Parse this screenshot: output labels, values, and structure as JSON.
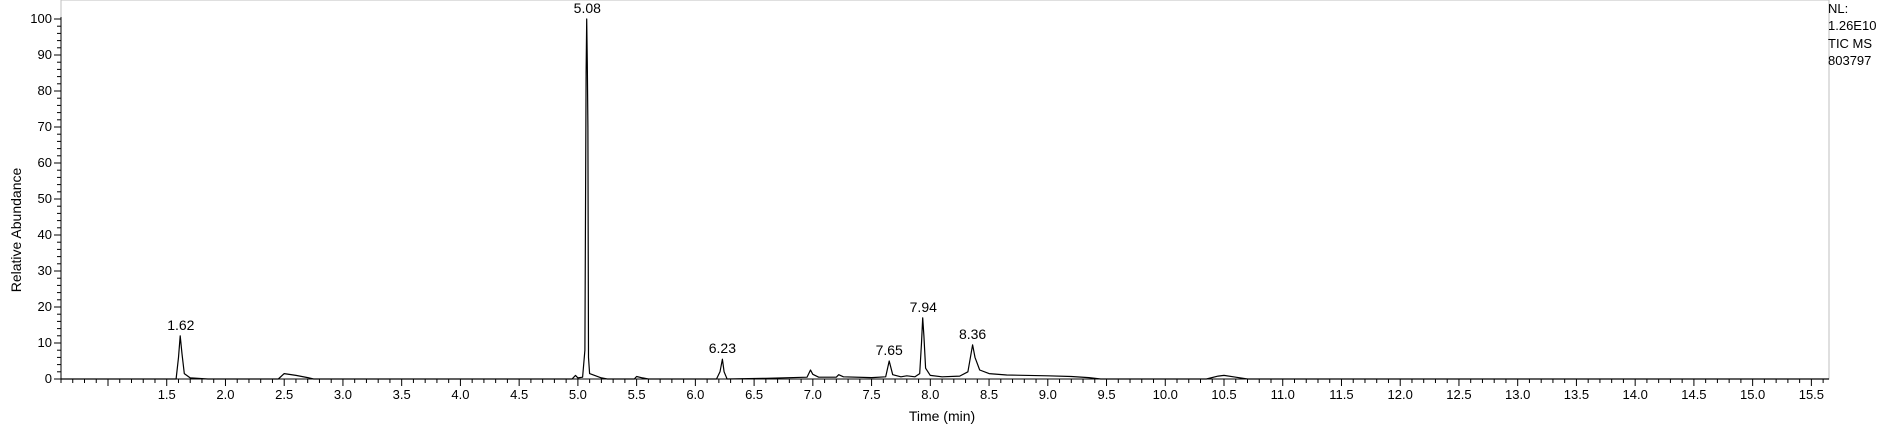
{
  "chart_data": {
    "type": "line",
    "xlabel": "Time (min)",
    "ylabel": "Relative Abundance",
    "xlim": [
      0.6,
      15.65
    ],
    "ylim": [
      0,
      100
    ],
    "x_ticks": [
      "1.5",
      "2.0",
      "2.5",
      "3.0",
      "3.5",
      "4.0",
      "4.5",
      "5.0",
      "5.5",
      "6.0",
      "6.5",
      "7.0",
      "7.5",
      "8.0",
      "8.5",
      "9.0",
      "9.5",
      "10.0",
      "10.5",
      "11.0",
      "11.5",
      "12.0",
      "12.5",
      "13.0",
      "13.5",
      "14.0",
      "14.5",
      "15.0",
      "15.5"
    ],
    "y_ticks": [
      "0",
      "10",
      "20",
      "30",
      "40",
      "50",
      "60",
      "70",
      "80",
      "90",
      "100"
    ],
    "grid": false,
    "peak_labels": [
      {
        "label": "1.62",
        "x": 1.62,
        "y": 12
      },
      {
        "label": "5.08",
        "x": 5.08,
        "y": 100
      },
      {
        "label": "6.23",
        "x": 6.23,
        "y": 5.5
      },
      {
        "label": "7.65",
        "x": 7.65,
        "y": 5
      },
      {
        "label": "7.94",
        "x": 7.94,
        "y": 17
      },
      {
        "label": "8.36",
        "x": 8.36,
        "y": 9.5
      }
    ],
    "series": [
      {
        "color": "#000000",
        "points": [
          [
            0.6,
            0
          ],
          [
            1.58,
            0
          ],
          [
            1.6,
            6
          ],
          [
            1.615,
            12
          ],
          [
            1.63,
            7
          ],
          [
            1.65,
            1.5
          ],
          [
            1.7,
            0.3
          ],
          [
            1.85,
            0
          ],
          [
            2.45,
            0
          ],
          [
            2.5,
            1.5
          ],
          [
            2.6,
            1
          ],
          [
            2.7,
            0.4
          ],
          [
            2.75,
            0
          ],
          [
            4.95,
            0
          ],
          [
            4.98,
            1
          ],
          [
            5.0,
            0.3
          ],
          [
            5.04,
            0.5
          ],
          [
            5.06,
            8
          ],
          [
            5.07,
            85
          ],
          [
            5.075,
            100
          ],
          [
            5.08,
            88
          ],
          [
            5.085,
            70
          ],
          [
            5.09,
            6
          ],
          [
            5.1,
            1.5
          ],
          [
            5.2,
            0.3
          ],
          [
            5.25,
            0
          ],
          [
            5.48,
            0
          ],
          [
            5.5,
            0.7
          ],
          [
            5.55,
            0.3
          ],
          [
            5.6,
            0
          ],
          [
            6.18,
            0
          ],
          [
            6.21,
            2
          ],
          [
            6.23,
            5.5
          ],
          [
            6.245,
            2
          ],
          [
            6.27,
            0
          ],
          [
            6.6,
            0.2
          ],
          [
            6.95,
            0.5
          ],
          [
            6.98,
            2.5
          ],
          [
            7.0,
            1.3
          ],
          [
            7.05,
            0.5
          ],
          [
            7.2,
            0.5
          ],
          [
            7.22,
            1.2
          ],
          [
            7.26,
            0.6
          ],
          [
            7.5,
            0.4
          ],
          [
            7.62,
            0.6
          ],
          [
            7.65,
            5
          ],
          [
            7.68,
            1.2
          ],
          [
            7.75,
            0.6
          ],
          [
            7.8,
            0.9
          ],
          [
            7.87,
            0.6
          ],
          [
            7.91,
            1.5
          ],
          [
            7.925,
            10
          ],
          [
            7.935,
            17
          ],
          [
            7.945,
            12
          ],
          [
            7.96,
            3
          ],
          [
            8.0,
            1
          ],
          [
            8.1,
            0.6
          ],
          [
            8.25,
            0.8
          ],
          [
            8.32,
            2
          ],
          [
            8.36,
            9.5
          ],
          [
            8.38,
            6
          ],
          [
            8.42,
            2.5
          ],
          [
            8.5,
            1.5
          ],
          [
            8.65,
            1.1
          ],
          [
            9.0,
            0.9
          ],
          [
            9.2,
            0.7
          ],
          [
            9.35,
            0.4
          ],
          [
            9.45,
            0
          ],
          [
            10.35,
            0
          ],
          [
            10.45,
            0.8
          ],
          [
            10.5,
            1
          ],
          [
            10.6,
            0.5
          ],
          [
            10.7,
            0
          ],
          [
            15.65,
            0
          ]
        ]
      }
    ]
  },
  "normalization": {
    "nl_label": "NL:",
    "nl_value": "1.26E10",
    "trace_label": "TIC  MS",
    "file_id": "803797"
  }
}
